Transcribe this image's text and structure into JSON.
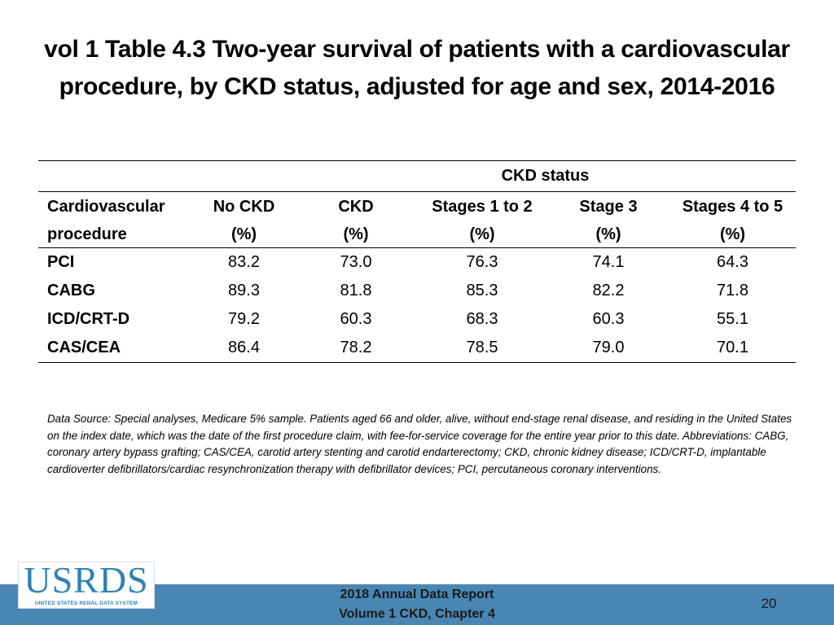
{
  "title": {
    "line1": "vol 1 Table 4.3 Two-year survival of patients with a cardiovascular",
    "line2": "procedure, by CKD status, adjusted for age and sex, 2014-2016"
  },
  "table": {
    "group_header": "CKD status",
    "headers": [
      {
        "line1": "Cardiovascular",
        "line2": "procedure"
      },
      {
        "line1": "No CKD",
        "line2": "(%)"
      },
      {
        "line1": "CKD",
        "line2": "(%)"
      },
      {
        "line1": "Stages 1 to 2",
        "line2": "(%)"
      },
      {
        "line1": "Stage 3",
        "line2": "(%)"
      },
      {
        "line1": "Stages 4 to 5",
        "line2": "(%)"
      }
    ],
    "rows": [
      {
        "procedure": "PCI",
        "values": [
          "83.2",
          "73.0",
          "76.3",
          "74.1",
          "64.3"
        ]
      },
      {
        "procedure": "CABG",
        "values": [
          "89.3",
          "81.8",
          "85.3",
          "82.2",
          "71.8"
        ]
      },
      {
        "procedure": "ICD/CRT-D",
        "values": [
          "79.2",
          "60.3",
          "68.3",
          "60.3",
          "55.1"
        ]
      },
      {
        "procedure": "CAS/CEA",
        "values": [
          "86.4",
          "78.2",
          "78.5",
          "79.0",
          "70.1"
        ]
      }
    ]
  },
  "footnote": "Data Source: Special analyses, Medicare 5% sample. Patients aged 66 and older, alive, without end-stage renal disease, and residing in the United States on the index date, which was the date of the first procedure claim, with fee-for-service coverage for the entire year prior to this date. Abbreviations: CABG, coronary artery bypass grafting; CAS/CEA, carotid artery stenting and carotid endarterectomy; CKD, chronic kidney disease; ICD/CRT-D, implantable cardioverter defibrillators/cardiac resynchronization therapy with defibrillator devices; PCI, percutaneous coronary interventions.",
  "logo": {
    "word": "USRDS",
    "subtitle": "UNITED STATES RENAL DATA SYSTEM"
  },
  "footer": {
    "line1": "2018 Annual Data Report",
    "line2": "Volume 1 CKD, Chapter 4",
    "page": "20"
  },
  "colors": {
    "footer_bar": "#4a86b4",
    "logo_blue": "#2f82b4"
  }
}
